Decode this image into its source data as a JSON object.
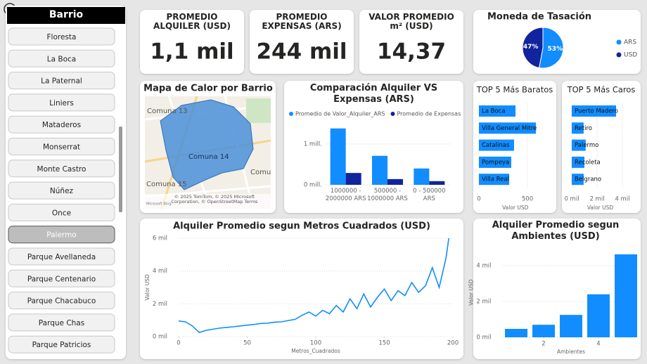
{
  "slicer": {
    "title": "Barrio",
    "items": [
      "Floresta",
      "La Boca",
      "La Paternal",
      "Liniers",
      "Mataderos",
      "Monserrat",
      "Monte Castro",
      "Núñez",
      "Once",
      "Palermo",
      "Parque Avellaneda",
      "Parque Centenario",
      "Parque Chacabuco",
      "Parque Chas",
      "Parque Patricios"
    ],
    "selected": "Palermo"
  },
  "cards": [
    {
      "label": "PROMEDIO ALQUILER (USD)",
      "value": "1,1 mil"
    },
    {
      "label": "PROMEDIO EXPENSAS (ARS)",
      "value": "244 mil"
    },
    {
      "label": "VALOR PROMEDIO m² (USD)",
      "value": "14,37"
    }
  ],
  "map": {
    "title": "Mapa de Calor por Barrio",
    "labels": [
      "Comuna 13",
      "Comuna 14",
      "Comuna 15",
      "Comu"
    ],
    "attribution": "© 2025 TomTom, © 2025 Microsoft Corporation, © OpenStreetMap Terms",
    "logo": "Microsoft Bing"
  },
  "chart_data": [
    {
      "type": "pie",
      "title": "Moneda de Tasación",
      "categories": [
        "ARS",
        "USD"
      ],
      "values": [
        53,
        47
      ],
      "value_labels": [
        "53%",
        "47%"
      ],
      "colors": [
        "#118DFF",
        "#12239E"
      ]
    },
    {
      "type": "grouped_bar",
      "title": "Comparación Alquiler VS Expensas (ARS)",
      "categories": [
        "1000000 - 2000000 ARS",
        "500000 - 1000000 ARS",
        "0 - 500000 ARS"
      ],
      "series": [
        {
          "name": "Promedio de Valor_Alquiler_ARS",
          "color": "#118DFF",
          "values": [
            1380000,
            710000,
            400000
          ]
        },
        {
          "name": "Promedio de Expensas",
          "color": "#12239E",
          "values": [
            290000,
            140000,
            90000
          ]
        }
      ],
      "ylim": [
        0,
        1600000
      ],
      "yticks": [
        {
          "value": 0,
          "label": "0 mill."
        },
        {
          "value": 1000000,
          "label": "1 mill."
        }
      ]
    },
    {
      "type": "hbar",
      "title": "TOP 5 Más Baratos",
      "categories": [
        "La Boca",
        "Villa General Mitre",
        "Catalinas",
        "Pompeya",
        "Villa Real"
      ],
      "values": [
        377,
        587,
        362,
        333,
        312
      ],
      "color": "#118DFF",
      "xlim": [
        0,
        750
      ],
      "xticks": [
        0,
        500
      ],
      "xlabel": "Valor USD"
    },
    {
      "type": "hbar",
      "title": "TOP 5 Más Caros",
      "categories": [
        "Puerto Madero",
        "Retiro",
        "Palermo",
        "Recoleta",
        "Belgrano"
      ],
      "values": [
        3500,
        940,
        1100,
        1000,
        940
      ],
      "color": "#118DFF",
      "xlim": [
        0,
        4500
      ],
      "xticks": [
        {
          "value": 0,
          "label": "0 mil"
        },
        {
          "value": 2000,
          "label": "2 mil"
        },
        {
          "value": 4000,
          "label": "4 mil"
        }
      ],
      "xlabel": "Valor USD"
    },
    {
      "type": "line",
      "title": "Alquiler Promedio segun Metros Cuadrados (USD)",
      "color": "#118DFF",
      "x": [
        0,
        5,
        10,
        15,
        20,
        25,
        30,
        35,
        40,
        45,
        50,
        55,
        60,
        65,
        70,
        75,
        80,
        85,
        90,
        95,
        100,
        105,
        110,
        115,
        120,
        125,
        130,
        135,
        140,
        145,
        150,
        155,
        160,
        165,
        170,
        175,
        180,
        185,
        190,
        195,
        197
      ],
      "values": [
        950,
        900,
        650,
        250,
        380,
        450,
        520,
        560,
        600,
        650,
        700,
        740,
        800,
        820,
        880,
        900,
        980,
        1050,
        1300,
        1500,
        1250,
        1600,
        1400,
        1900,
        1500,
        2300,
        1700,
        2600,
        1800,
        2400,
        2900,
        2200,
        2800,
        2500,
        3300,
        2700,
        3100,
        4200,
        3000,
        4800,
        6000
      ],
      "xlim": [
        0,
        200
      ],
      "xticks": [
        0,
        50,
        100,
        150,
        200
      ],
      "ylim": [
        0,
        6000
      ],
      "yticks": [
        {
          "value": 0,
          "label": "0 mil"
        },
        {
          "value": 2000,
          "label": "2 mil"
        },
        {
          "value": 4000,
          "label": "4 mil"
        },
        {
          "value": 6000,
          "label": "6 mil"
        }
      ],
      "xlabel": "Metros_Cuadrados",
      "ylabel": "Valor USD",
      "grid": true
    },
    {
      "type": "bar",
      "title": "Alquiler Promedio segun Ambientes (USD)",
      "color": "#118DFF",
      "x": [
        1,
        2,
        3,
        4,
        5
      ],
      "values": [
        470,
        700,
        1250,
        2400,
        4630
      ],
      "xlim": [
        0.5,
        5.5
      ],
      "xticks": [
        2,
        4
      ],
      "ylim": [
        0,
        5000
      ],
      "yticks": [
        {
          "value": 0,
          "label": "0 mil"
        },
        {
          "value": 2000,
          "label": "2 mil"
        },
        {
          "value": 4000,
          "label": "4 mil"
        }
      ],
      "xlabel": "Ambientes",
      "ylabel": "Valor USD",
      "grid": true
    }
  ]
}
